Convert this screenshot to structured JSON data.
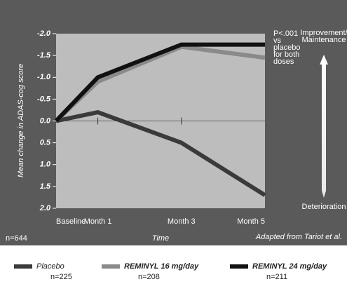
{
  "chart_data": {
    "type": "line",
    "y_label": "Mean change in ADAS-cog score",
    "x_label": "Time",
    "note_left": "n=644",
    "source": "Adapted from Tariot et al.",
    "annotation": [
      "P<.001",
      "vs",
      "placebo",
      "for both",
      "doses"
    ],
    "arrow_top": [
      "Improvement/",
      "Maintenance"
    ],
    "arrow_bottom": "Deterioration",
    "x": [
      0,
      1,
      3,
      5
    ],
    "xlim": [
      0,
      5
    ],
    "xticks": [
      {
        "value": 0,
        "label": "Baseline"
      },
      {
        "value": 1,
        "label": "Month 1"
      },
      {
        "value": 3,
        "label": "Month 3"
      },
      {
        "value": 5,
        "label": "Month 5"
      }
    ],
    "ylim": [
      -2,
      2
    ],
    "y_inverted": true,
    "yticks": [
      {
        "value": -2,
        "label": "-2.0"
      },
      -1.5,
      {
        "value": -1,
        "label": "-1.0"
      },
      -0.5,
      {
        "value": 0,
        "label": "0.0"
      },
      0.5,
      {
        "value": 1,
        "label": "1.0"
      },
      1.5,
      {
        "value": 2,
        "label": "2.0"
      }
    ],
    "series": [
      {
        "name": "Placebo",
        "n": "n=225",
        "color": "#3a3a3a",
        "values": [
          0,
          -0.2,
          0.5,
          1.7
        ]
      },
      {
        "name": "REMINYL 16 mg/day",
        "n": "n=208",
        "color": "#8a8a8a",
        "values": [
          0,
          -0.9,
          -1.7,
          -1.45
        ]
      },
      {
        "name": "REMINYL 24 mg/day",
        "n": "n=211",
        "color": "#111111",
        "values": [
          0,
          -1.0,
          -1.75,
          -1.75
        ]
      }
    ]
  }
}
